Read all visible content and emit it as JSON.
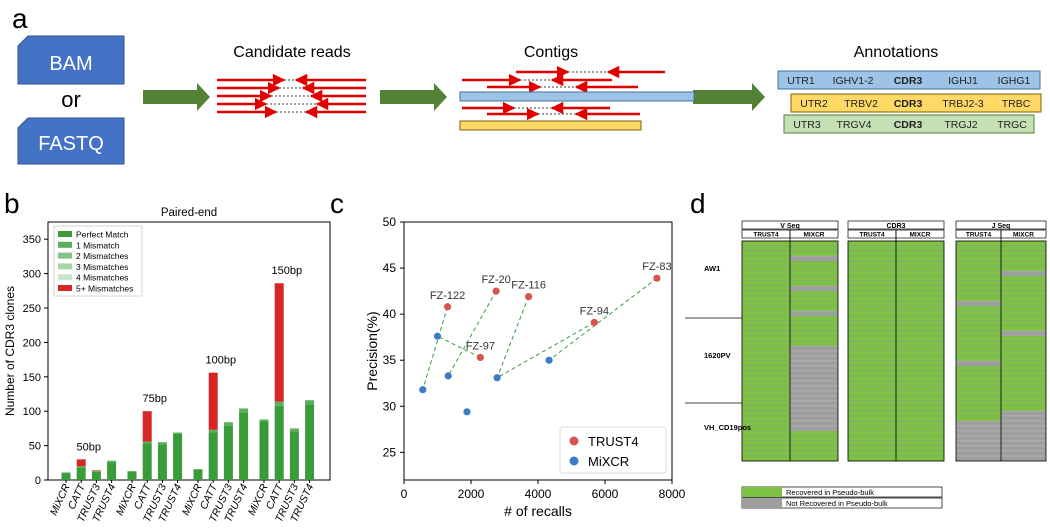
{
  "panel_labels": {
    "a": "a",
    "b": "b",
    "c": "c",
    "d": "d"
  },
  "colors": {
    "blue_box": "#4472C4",
    "arrow_green": "#548235",
    "read_red": "#E00000",
    "contig_blue": "#9DC3E6",
    "contig_yellow": "#FFD966",
    "ann_green": "#C5E0B4",
    "match_green": "#3A9B3A",
    "mismatch_red": "#D62728",
    "trust4_red": "#D9534F",
    "mixcr_blue": "#3B7DC4",
    "recovered": "#7DC242",
    "not_recovered": "#9E9E9E"
  },
  "panel_a": {
    "inputs": {
      "bam": "BAM",
      "or": "or",
      "fastq": "FASTQ"
    },
    "step_titles": {
      "candidate_reads": "Candidate reads",
      "contigs": "Contigs",
      "annotations": "Annotations"
    },
    "annotation_rows": [
      [
        "UTR1",
        "IGHV1-2",
        "CDR3",
        "IGHJ1",
        "IGHG1"
      ],
      [
        "UTR2",
        "TRBV2",
        "CDR3",
        "TRBJ2-3",
        "TRBC"
      ],
      [
        "UTR3",
        "TRGV4",
        "CDR3",
        "TRGJ2",
        "TRGC"
      ]
    ]
  },
  "chart_data": [
    {
      "id": "b",
      "type": "bar",
      "title": "Paired-end",
      "ylabel": "Number of CDR3 clones",
      "ylim": [
        0,
        375
      ],
      "yticks": [
        0,
        50,
        100,
        150,
        200,
        250,
        300,
        350
      ],
      "groups": [
        {
          "label": "50bp",
          "bars": [
            {
              "name": "MiXCR",
              "stack": [
                10,
                1,
                0,
                0,
                0,
                0
              ]
            },
            {
              "name": "CATT",
              "stack": [
                18,
                2,
                0,
                0,
                0,
                10
              ]
            },
            {
              "name": "TRUST3",
              "stack": [
                12,
                1,
                0,
                0,
                0,
                1
              ]
            },
            {
              "name": "TRUST4",
              "stack": [
                26,
                2,
                0,
                0,
                0,
                0
              ]
            }
          ]
        },
        {
          "label": "75bp",
          "bars": [
            {
              "name": "MiXCR",
              "stack": [
                12,
                1,
                0,
                0,
                0,
                0
              ]
            },
            {
              "name": "CATT",
              "stack": [
                53,
                3,
                0,
                0,
                0,
                44
              ]
            },
            {
              "name": "TRUST3",
              "stack": [
                52,
                3,
                0,
                0,
                0,
                0
              ]
            },
            {
              "name": "TRUST4",
              "stack": [
                67,
                2,
                0,
                0,
                0,
                0
              ]
            }
          ]
        },
        {
          "label": "100bp",
          "bars": [
            {
              "name": "MiXCR",
              "stack": [
                15,
                1,
                0,
                0,
                0,
                0
              ]
            },
            {
              "name": "CATT",
              "stack": [
                69,
                4,
                0,
                0,
                0,
                83
              ]
            },
            {
              "name": "TRUST3",
              "stack": [
                79,
                5,
                0,
                0,
                0,
                0
              ]
            },
            {
              "name": "TRUST4",
              "stack": [
                98,
                6,
                0,
                0,
                0,
                0
              ]
            }
          ]
        },
        {
          "label": "150bp",
          "bars": [
            {
              "name": "MiXCR",
              "stack": [
                85,
                3,
                0,
                0,
                0,
                0
              ]
            },
            {
              "name": "CATT",
              "stack": [
                108,
                6,
                0,
                0,
                0,
                172
              ]
            },
            {
              "name": "TRUST3",
              "stack": [
                71,
                4,
                0,
                0,
                0,
                0
              ]
            },
            {
              "name": "TRUST4",
              "stack": [
                110,
                6,
                0,
                0,
                0,
                0
              ]
            }
          ]
        }
      ],
      "legend": [
        "Perfect Match",
        "1 Mismatch",
        "2 Mismatches",
        "3 Mismatches",
        "4 Mismatches",
        "5+ Mismatches"
      ],
      "stack_colors": [
        "#3A9B3A",
        "#5DAE5D",
        "#86C386",
        "#A8D5A8",
        "#C9E6C9",
        "#D62728"
      ]
    },
    {
      "id": "c",
      "type": "scatter",
      "xlabel": "# of recalls",
      "ylabel": "Precision(%)",
      "xlim": [
        0,
        8000
      ],
      "ylim": [
        22,
        50
      ],
      "xticks": [
        0,
        2000,
        4000,
        6000,
        8000
      ],
      "yticks": [
        25,
        30,
        35,
        40,
        45,
        50
      ],
      "legend": [
        "TRUST4",
        "MiXCR"
      ],
      "trust4": [
        {
          "label": "FZ-122",
          "x": 1300,
          "y": 40.8
        },
        {
          "label": "FZ-20",
          "x": 2750,
          "y": 42.5
        },
        {
          "label": "FZ-116",
          "x": 3720,
          "y": 41.9
        },
        {
          "label": "FZ-97",
          "x": 2280,
          "y": 35.3
        },
        {
          "label": "FZ-94",
          "x": 5680,
          "y": 39.1
        },
        {
          "label": "FZ-83",
          "x": 7550,
          "y": 43.9
        }
      ],
      "mixcr": [
        {
          "x": 560,
          "y": 31.8
        },
        {
          "x": 1000,
          "y": 37.6
        },
        {
          "x": 1320,
          "y": 33.3
        },
        {
          "x": 1880,
          "y": 29.4
        },
        {
          "x": 2780,
          "y": 33.1
        },
        {
          "x": 4330,
          "y": 35.0
        }
      ],
      "pairs": [
        [
          0,
          0
        ],
        [
          1,
          2
        ],
        [
          2,
          4
        ],
        [
          3,
          1
        ],
        [
          4,
          4
        ],
        [
          5,
          5
        ]
      ]
    }
  ],
  "panel_d": {
    "blocks": [
      {
        "title": "V Seq",
        "cols": [
          "TRUST4",
          "MIXCR"
        ]
      },
      {
        "title": "CDR3",
        "cols": [
          "TRUST4",
          "MIXCR"
        ]
      },
      {
        "title": "J Seq",
        "cols": [
          "TRUST4",
          "MIXCR"
        ]
      }
    ],
    "samples": [
      "AW1",
      "1620PV",
      "VH_CD19pos"
    ],
    "legend": [
      "Recovered in Pseudo-bulk",
      "Not Recovered in Pseudo-bulk"
    ]
  }
}
